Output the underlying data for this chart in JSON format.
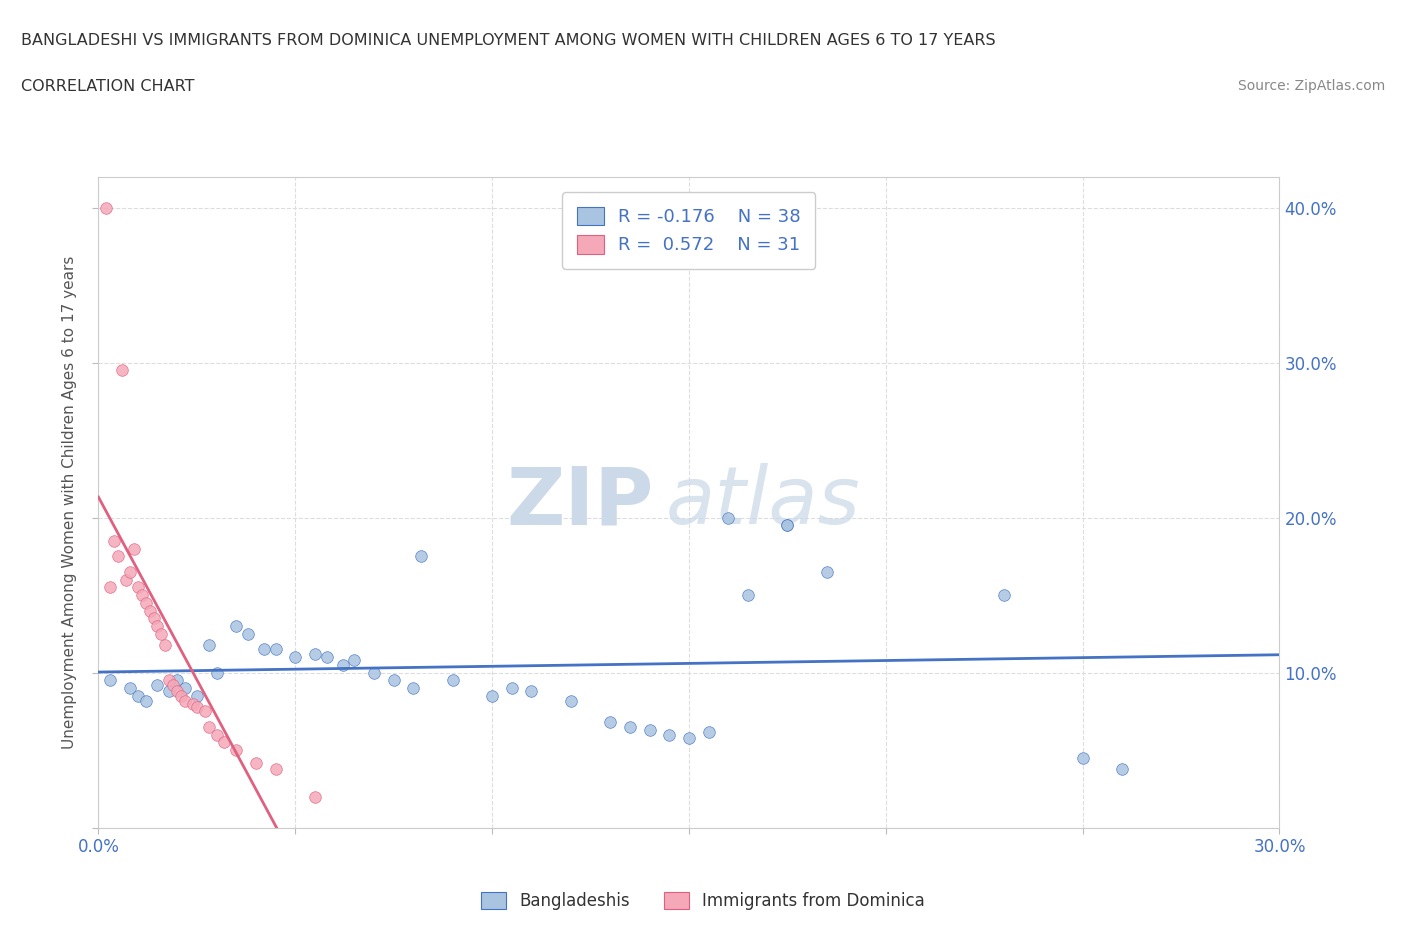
{
  "title_line1": "BANGLADESHI VS IMMIGRANTS FROM DOMINICA UNEMPLOYMENT AMONG WOMEN WITH CHILDREN AGES 6 TO 17 YEARS",
  "title_line2": "CORRELATION CHART",
  "source_text": "Source: ZipAtlas.com",
  "ylabel": "Unemployment Among Women with Children Ages 6 to 17 years",
  "blue_color": "#a8c4e0",
  "pink_color": "#f4a8b8",
  "trendline_blue": "#4472c4",
  "trendline_pink": "#e06080",
  "watermark_zip": "ZIP",
  "watermark_atlas": "atlas",
  "blue_scatter": [
    [
      0.003,
      0.095
    ],
    [
      0.008,
      0.09
    ],
    [
      0.01,
      0.085
    ],
    [
      0.012,
      0.082
    ],
    [
      0.015,
      0.092
    ],
    [
      0.018,
      0.088
    ],
    [
      0.02,
      0.095
    ],
    [
      0.022,
      0.09
    ],
    [
      0.025,
      0.085
    ],
    [
      0.028,
      0.118
    ],
    [
      0.03,
      0.1
    ],
    [
      0.035,
      0.13
    ],
    [
      0.038,
      0.125
    ],
    [
      0.042,
      0.115
    ],
    [
      0.045,
      0.115
    ],
    [
      0.05,
      0.11
    ],
    [
      0.055,
      0.112
    ],
    [
      0.058,
      0.11
    ],
    [
      0.062,
      0.105
    ],
    [
      0.065,
      0.108
    ],
    [
      0.07,
      0.1
    ],
    [
      0.075,
      0.095
    ],
    [
      0.08,
      0.09
    ],
    [
      0.082,
      0.175
    ],
    [
      0.09,
      0.095
    ],
    [
      0.1,
      0.085
    ],
    [
      0.105,
      0.09
    ],
    [
      0.11,
      0.088
    ],
    [
      0.12,
      0.082
    ],
    [
      0.13,
      0.068
    ],
    [
      0.135,
      0.065
    ],
    [
      0.14,
      0.063
    ],
    [
      0.145,
      0.06
    ],
    [
      0.15,
      0.058
    ],
    [
      0.155,
      0.062
    ],
    [
      0.16,
      0.2
    ],
    [
      0.165,
      0.15
    ],
    [
      0.175,
      0.195
    ],
    [
      0.23,
      0.15
    ],
    [
      0.25,
      0.045
    ],
    [
      0.26,
      0.038
    ],
    [
      0.175,
      0.195
    ],
    [
      0.185,
      0.165
    ]
  ],
  "pink_scatter": [
    [
      0.002,
      0.4
    ],
    [
      0.003,
      0.155
    ],
    [
      0.004,
      0.185
    ],
    [
      0.005,
      0.175
    ],
    [
      0.006,
      0.295
    ],
    [
      0.007,
      0.16
    ],
    [
      0.008,
      0.165
    ],
    [
      0.009,
      0.18
    ],
    [
      0.01,
      0.155
    ],
    [
      0.011,
      0.15
    ],
    [
      0.012,
      0.145
    ],
    [
      0.013,
      0.14
    ],
    [
      0.014,
      0.135
    ],
    [
      0.015,
      0.13
    ],
    [
      0.016,
      0.125
    ],
    [
      0.017,
      0.118
    ],
    [
      0.018,
      0.095
    ],
    [
      0.019,
      0.092
    ],
    [
      0.02,
      0.088
    ],
    [
      0.021,
      0.085
    ],
    [
      0.022,
      0.082
    ],
    [
      0.024,
      0.08
    ],
    [
      0.025,
      0.078
    ],
    [
      0.027,
      0.075
    ],
    [
      0.028,
      0.065
    ],
    [
      0.03,
      0.06
    ],
    [
      0.032,
      0.055
    ],
    [
      0.035,
      0.05
    ],
    [
      0.04,
      0.042
    ],
    [
      0.045,
      0.038
    ],
    [
      0.055,
      0.02
    ]
  ],
  "xlim": [
    0.0,
    0.3
  ],
  "ylim": [
    0.0,
    0.42
  ],
  "ytick_positions": [
    0.0,
    0.1,
    0.2,
    0.3,
    0.4
  ],
  "ytick_labels": [
    "",
    "10.0%",
    "20.0%",
    "30.0%",
    "40.0%"
  ],
  "xtick_positions": [
    0.0,
    0.05,
    0.1,
    0.15,
    0.2,
    0.25,
    0.3
  ],
  "grid_color": "#dddddd",
  "background_color": "#ffffff",
  "title_color": "#333333",
  "axis_label_color": "#4472c4",
  "watermark_color": "#ccd9e8"
}
